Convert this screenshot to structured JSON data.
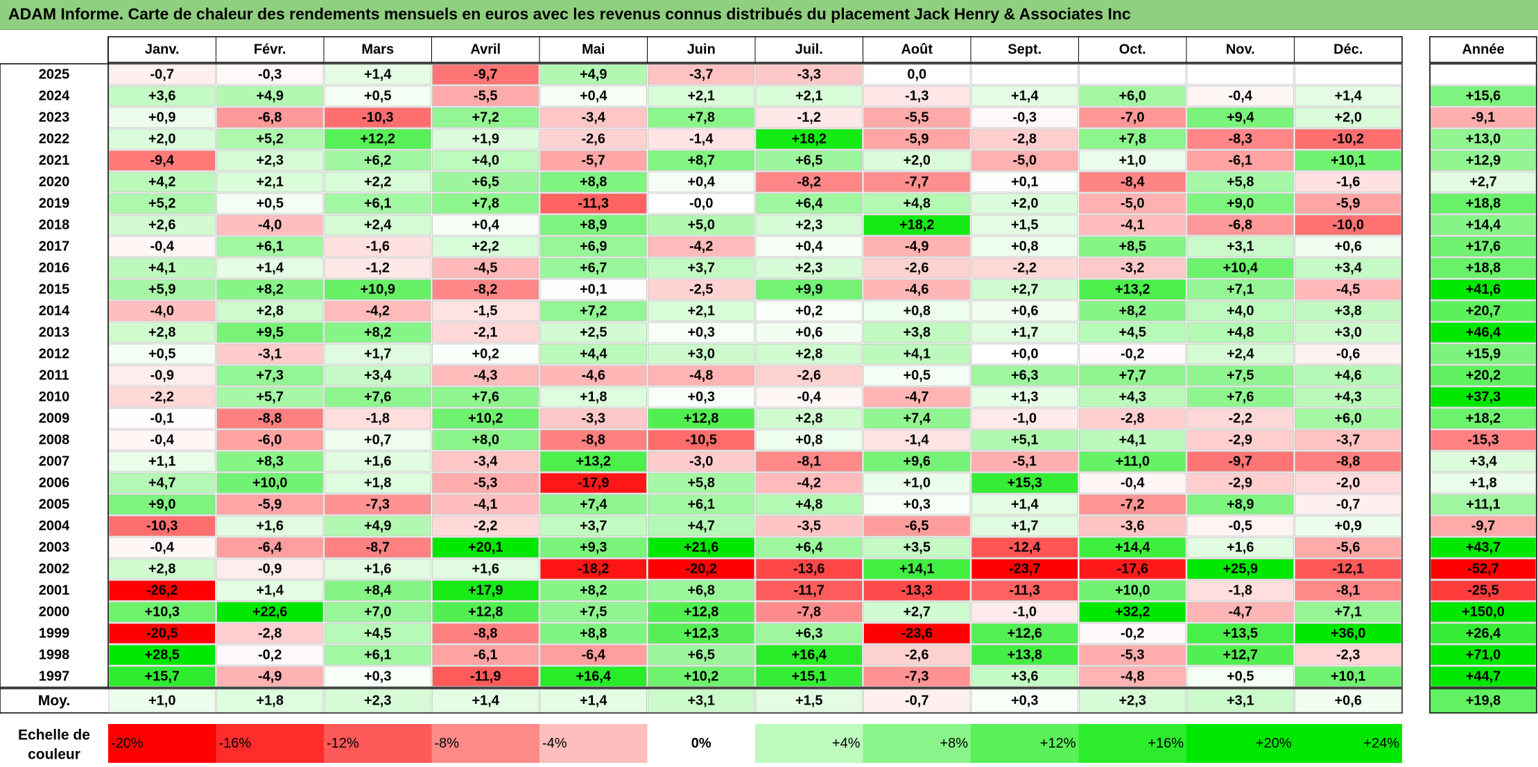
{
  "title": "ADAM Informe. Carte de chaleur des rendements mensuels en euros avec les revenus connus distribués du placement Jack Henry & Associates Inc",
  "chart_data": {
    "type": "heatmap",
    "title": "ADAM Informe. Carte de chaleur des rendements mensuels en euros avec les revenus connus distribués du placement Jack Henry & Associates Inc",
    "columns": [
      "Janv.",
      "Févr.",
      "Mars",
      "Avril",
      "Mai",
      "Juin",
      "Juil.",
      "Août",
      "Sept.",
      "Oct.",
      "Nov.",
      "Déc."
    ],
    "year_header": "Année",
    "rows": [
      {
        "year": "2025",
        "values": [
          "-0,7",
          "-0,3",
          "+1,4",
          "-9,7",
          "+4,9",
          "-3,7",
          "-3,3",
          "0,0",
          "",
          "",
          "",
          ""
        ],
        "annual": ""
      },
      {
        "year": "2024",
        "values": [
          "+3,6",
          "+4,9",
          "+0,5",
          "-5,5",
          "+0,4",
          "+2,1",
          "+2,1",
          "-1,3",
          "+1,4",
          "+6,0",
          "-0,4",
          "+1,4"
        ],
        "annual": "+15,6"
      },
      {
        "year": "2023",
        "values": [
          "+0,9",
          "-6,8",
          "-10,3",
          "+7,2",
          "-3,4",
          "+7,8",
          "-1,2",
          "-5,5",
          "-0,3",
          "-7,0",
          "+9,4",
          "+2,0"
        ],
        "annual": "-9,1"
      },
      {
        "year": "2022",
        "values": [
          "+2,0",
          "+5,2",
          "+12,2",
          "+1,9",
          "-2,6",
          "-1,4",
          "+18,2",
          "-5,9",
          "-2,8",
          "+7,8",
          "-8,3",
          "-10,2"
        ],
        "annual": "+13,0"
      },
      {
        "year": "2021",
        "values": [
          "-9,4",
          "+2,3",
          "+6,2",
          "+4,0",
          "-5,7",
          "+8,7",
          "+6,5",
          "+2,0",
          "-5,0",
          "+1,0",
          "-6,1",
          "+10,1"
        ],
        "annual": "+12,9"
      },
      {
        "year": "2020",
        "values": [
          "+4,2",
          "+2,1",
          "+2,2",
          "+6,5",
          "+8,8",
          "+0,4",
          "-8,2",
          "-7,7",
          "+0,1",
          "-8,4",
          "+5,8",
          "-1,6"
        ],
        "annual": "+2,7"
      },
      {
        "year": "2019",
        "values": [
          "+5,2",
          "+0,5",
          "+6,1",
          "+7,8",
          "-11,3",
          "-0,0",
          "+6,4",
          "+4,8",
          "+2,0",
          "-5,0",
          "+9,0",
          "-5,9"
        ],
        "annual": "+18,8"
      },
      {
        "year": "2018",
        "values": [
          "+2,6",
          "-4,0",
          "+2,4",
          "+0,4",
          "+8,9",
          "+5,0",
          "+2,3",
          "+18,2",
          "+1,5",
          "-4,1",
          "-6,8",
          "-10,0"
        ],
        "annual": "+14,4"
      },
      {
        "year": "2017",
        "values": [
          "-0,4",
          "+6,1",
          "-1,6",
          "+2,2",
          "+6,9",
          "-4,2",
          "+0,4",
          "-4,9",
          "+0,8",
          "+8,5",
          "+3,1",
          "+0,6"
        ],
        "annual": "+17,6"
      },
      {
        "year": "2016",
        "values": [
          "+4,1",
          "+1,4",
          "-1,2",
          "-4,5",
          "+6,7",
          "+3,7",
          "+2,3",
          "-2,6",
          "-2,2",
          "-3,2",
          "+10,4",
          "+3,4"
        ],
        "annual": "+18,8"
      },
      {
        "year": "2015",
        "values": [
          "+5,9",
          "+8,2",
          "+10,9",
          "-8,2",
          "+0,1",
          "-2,5",
          "+9,9",
          "-4,6",
          "+2,7",
          "+13,2",
          "+7,1",
          "-4,5"
        ],
        "annual": "+41,6"
      },
      {
        "year": "2014",
        "values": [
          "-4,0",
          "+2,8",
          "-4,2",
          "-1,5",
          "+7,2",
          "+2,1",
          "+0,2",
          "+0,8",
          "+0,6",
          "+8,2",
          "+4,0",
          "+3,8"
        ],
        "annual": "+20,7"
      },
      {
        "year": "2013",
        "values": [
          "+2,8",
          "+9,5",
          "+8,2",
          "-2,1",
          "+2,5",
          "+0,3",
          "+0,6",
          "+3,8",
          "+1,7",
          "+4,5",
          "+4,8",
          "+3,0"
        ],
        "annual": "+46,4"
      },
      {
        "year": "2012",
        "values": [
          "+0,5",
          "-3,1",
          "+1,7",
          "+0,2",
          "+4,4",
          "+3,0",
          "+2,8",
          "+4,1",
          "+0,0",
          "-0,2",
          "+2,4",
          "-0,6"
        ],
        "annual": "+15,9"
      },
      {
        "year": "2011",
        "values": [
          "-0,9",
          "+7,3",
          "+3,4",
          "-4,3",
          "-4,6",
          "-4,8",
          "-2,6",
          "+0,5",
          "+6,3",
          "+7,7",
          "+7,5",
          "+4,6"
        ],
        "annual": "+20,2"
      },
      {
        "year": "2010",
        "values": [
          "-2,2",
          "+5,7",
          "+7,6",
          "+7,6",
          "+1,8",
          "+0,3",
          "-0,4",
          "-4,7",
          "+1,3",
          "+4,3",
          "+7,6",
          "+4,3"
        ],
        "annual": "+37,3"
      },
      {
        "year": "2009",
        "values": [
          "-0,1",
          "-8,8",
          "-1,8",
          "+10,2",
          "-3,3",
          "+12,8",
          "+2,8",
          "+7,4",
          "-1,0",
          "-2,8",
          "-2,2",
          "+6,0"
        ],
        "annual": "+18,2"
      },
      {
        "year": "2008",
        "values": [
          "-0,4",
          "-6,0",
          "+0,7",
          "+8,0",
          "-8,8",
          "-10,5",
          "+0,8",
          "-1,4",
          "+5,1",
          "+4,1",
          "-2,9",
          "-3,7"
        ],
        "annual": "-15,3"
      },
      {
        "year": "2007",
        "values": [
          "+1,1",
          "+8,3",
          "+1,6",
          "-3,4",
          "+13,2",
          "-3,0",
          "-8,1",
          "+9,6",
          "-5,1",
          "+11,0",
          "-9,7",
          "-8,8"
        ],
        "annual": "+3,4"
      },
      {
        "year": "2006",
        "values": [
          "+4,7",
          "+10,0",
          "+1,8",
          "-5,3",
          "-17,9",
          "+5,8",
          "-4,2",
          "+1,0",
          "+15,3",
          "-0,4",
          "-2,9",
          "-2,0"
        ],
        "annual": "+1,8"
      },
      {
        "year": "2005",
        "values": [
          "+9,0",
          "-5,9",
          "-7,3",
          "-4,1",
          "+7,4",
          "+6,1",
          "+4,8",
          "+0,3",
          "+1,4",
          "-7,2",
          "+8,9",
          "-0,7"
        ],
        "annual": "+11,1"
      },
      {
        "year": "2004",
        "values": [
          "-10,3",
          "+1,6",
          "+4,9",
          "-2,2",
          "+3,7",
          "+4,7",
          "-3,5",
          "-6,5",
          "+1,7",
          "-3,6",
          "-0,5",
          "+0,9"
        ],
        "annual": "-9,7"
      },
      {
        "year": "2003",
        "values": [
          "-0,4",
          "-6,4",
          "-8,7",
          "+20,1",
          "+9,3",
          "+21,6",
          "+6,4",
          "+3,5",
          "-12,4",
          "+14,4",
          "+1,6",
          "-5,6"
        ],
        "annual": "+43,7"
      },
      {
        "year": "2002",
        "values": [
          "+2,8",
          "-0,9",
          "+1,6",
          "+1,6",
          "-18,2",
          "-20,2",
          "-13,6",
          "+14,1",
          "-23,7",
          "-17,6",
          "+25,9",
          "-12,1"
        ],
        "annual": "-52,7"
      },
      {
        "year": "2001",
        "values": [
          "-26,2",
          "+1,4",
          "+8,4",
          "+17,9",
          "+8,2",
          "+6,8",
          "-11,7",
          "-13,3",
          "-11,3",
          "+10,0",
          "-1,8",
          "-8,1"
        ],
        "annual": "-25,5"
      },
      {
        "year": "2000",
        "values": [
          "+10,3",
          "+22,6",
          "+7,0",
          "+12,8",
          "+7,5",
          "+12,8",
          "-7,8",
          "+2,7",
          "-1,0",
          "+32,2",
          "-4,7",
          "+7,1"
        ],
        "annual": "+150,0"
      },
      {
        "year": "1999",
        "values": [
          "-20,5",
          "-2,8",
          "+4,5",
          "-8,8",
          "+8,8",
          "+12,3",
          "+6,3",
          "-23,6",
          "+12,6",
          "-0,2",
          "+13,5",
          "+36,0"
        ],
        "annual": "+26,4"
      },
      {
        "year": "1998",
        "values": [
          "+28,5",
          "-0,2",
          "+6,1",
          "-6,1",
          "-6,4",
          "+6,5",
          "+16,4",
          "-2,6",
          "+13,8",
          "-5,3",
          "+12,7",
          "-2,3"
        ],
        "annual": "+71,0"
      },
      {
        "year": "1997",
        "values": [
          "+15,7",
          "-4,9",
          "+0,3",
          "-11,9",
          "+16,4",
          "+10,2",
          "+15,1",
          "-7,3",
          "+3,6",
          "-4,8",
          "+0,5",
          "+10,1"
        ],
        "annual": "+44,7"
      }
    ],
    "average": {
      "label": "Moy.",
      "values": [
        "+1,0",
        "+1,8",
        "+2,3",
        "+1,4",
        "+1,4",
        "+3,1",
        "+1,5",
        "-0,7",
        "+0,3",
        "+2,3",
        "+3,1",
        "+0,6"
      ],
      "annual": "+19,8"
    },
    "color_scale": {
      "label_line1": "Echelle de",
      "label_line2": "couleur",
      "steps": [
        "-20%",
        "-16%",
        "-12%",
        "-8%",
        "-4%",
        "0%",
        "+4%",
        "+8%",
        "+12%",
        "+16%",
        "+20%",
        "+24%"
      ],
      "step_values": [
        -20,
        -16,
        -12,
        -8,
        -4,
        0,
        4,
        8,
        12,
        16,
        20,
        24
      ]
    },
    "colors": {
      "negative_max": "#ff0000",
      "neutral": "#ffffff",
      "positive_max": "#00ee00",
      "title_bg": "#8fcf7f"
    }
  }
}
